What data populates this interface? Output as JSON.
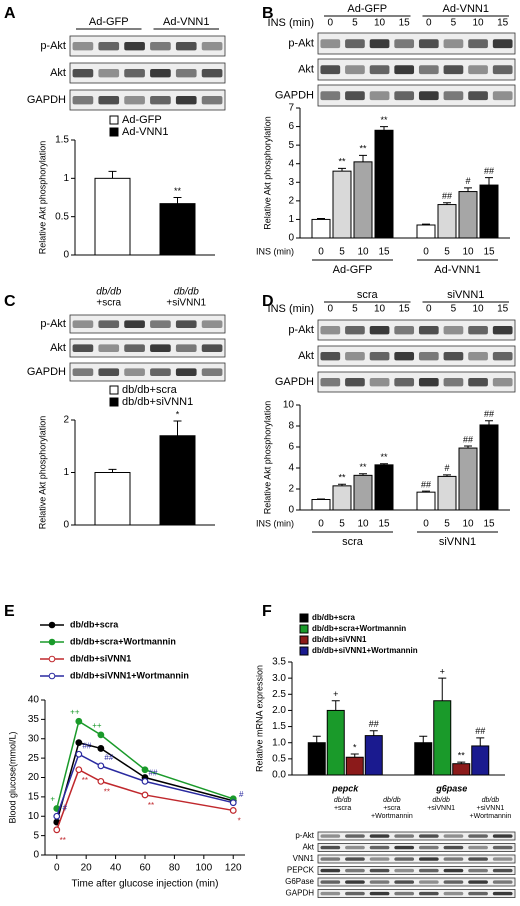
{
  "panel_labels": [
    "A",
    "B",
    "C",
    "D",
    "E",
    "F"
  ],
  "blots": [
    {
      "groups": [
        "Ad-GFP",
        "Ad-VNN1"
      ],
      "rows": [
        "p-Akt",
        "Akt",
        "GAPDH"
      ]
    },
    {
      "time_label": "INS (min)",
      "lanes": [
        "0",
        "5",
        "10",
        "15",
        "0",
        "5",
        "10",
        "15"
      ],
      "groups": [
        "Ad-GFP",
        "Ad-VNN1"
      ],
      "rows": [
        "p-Akt",
        "Akt",
        "GAPDH"
      ]
    },
    {
      "groups": [
        [
          "db/db",
          "+scra"
        ],
        [
          "db/db",
          "+siVNN1"
        ]
      ],
      "rows": [
        "p-Akt",
        "Akt",
        "GAPDH"
      ]
    },
    {
      "time_label": "INS (min)",
      "lanes": [
        "0",
        "5",
        "10",
        "15",
        "0",
        "5",
        "10",
        "15"
      ],
      "groups": [
        "scra",
        "siVNN1"
      ],
      "rows": [
        "p-Akt",
        "Akt",
        "GAPDH"
      ]
    },
    {
      "groups": [
        [
          "db/db",
          "+scra"
        ],
        [
          "db/db",
          "+scra",
          "+Wortmannin"
        ],
        [
          "db/db",
          "+siVNN1"
        ],
        [
          "db/db",
          "+siVNN1",
          "+Wortmannin"
        ]
      ],
      "rows": [
        "p-Akt",
        "Akt",
        "VNN1",
        "PEPCK",
        "G6Pase",
        "GAPDH"
      ]
    }
  ],
  "chart_data": [
    {
      "type": "bar",
      "ylabel": "Relative Akt phosphorylation",
      "ylim": [
        0,
        1.5
      ],
      "yticks": [
        0,
        0.5,
        1,
        1.5
      ],
      "series": [
        {
          "name": "Ad-GFP",
          "color": "#ffffff",
          "values": [
            1.0
          ],
          "errors": [
            0.09
          ],
          "sig": [
            null
          ]
        },
        {
          "name": "Ad-VNN1",
          "color": "#000000",
          "values": [
            0.67
          ],
          "errors": [
            0.08
          ],
          "sig": [
            "**"
          ]
        }
      ]
    },
    {
      "type": "bar",
      "ylabel": "Relative Akt phosphorylation",
      "xlabel": "INS (min)",
      "categories": [
        "0",
        "5",
        "10",
        "15"
      ],
      "colors": [
        "#ffffff",
        "#d9d9d9",
        "#a6a6a6",
        "#000000"
      ],
      "ylim": [
        0,
        7
      ],
      "yticks": [
        0,
        1,
        2,
        3,
        4,
        5,
        6,
        7
      ],
      "series": [
        {
          "name": "Ad-GFP",
          "values": [
            1.0,
            3.6,
            4.1,
            5.8
          ],
          "errors": [
            0.05,
            0.15,
            0.35,
            0.2
          ],
          "sig": [
            null,
            "**",
            "**",
            "**"
          ]
        },
        {
          "name": "Ad-VNN1",
          "values": [
            0.7,
            1.8,
            2.5,
            2.85
          ],
          "errors": [
            0.05,
            0.1,
            0.2,
            0.4
          ],
          "sig": [
            null,
            "##",
            "#",
            "##"
          ]
        }
      ]
    },
    {
      "type": "bar",
      "ylabel": "Relative Akt phosphorylation",
      "ylim": [
        0,
        2
      ],
      "yticks": [
        0,
        1,
        2
      ],
      "series": [
        {
          "name": "db/db+scra",
          "color": "#ffffff",
          "values": [
            1.0
          ],
          "errors": [
            0.06
          ],
          "sig": [
            null
          ]
        },
        {
          "name": "db/db+siVNN1",
          "color": "#000000",
          "values": [
            1.7
          ],
          "errors": [
            0.28
          ],
          "sig": [
            "*"
          ]
        }
      ]
    },
    {
      "type": "bar",
      "ylabel": "Relative Akt phosphorylation",
      "xlabel": "INS (min)",
      "categories": [
        "0",
        "5",
        "10",
        "15"
      ],
      "colors": [
        "#ffffff",
        "#d9d9d9",
        "#a6a6a6",
        "#000000"
      ],
      "ylim": [
        0,
        10
      ],
      "yticks": [
        0,
        2,
        4,
        6,
        8,
        10
      ],
      "series": [
        {
          "name": "scra",
          "values": [
            1.0,
            2.3,
            3.3,
            4.3
          ],
          "errors": [
            0.05,
            0.15,
            0.15,
            0.1
          ],
          "sig": [
            null,
            "**",
            "**",
            "**"
          ]
        },
        {
          "name": "siVNN1",
          "values": [
            1.7,
            3.2,
            5.9,
            8.1
          ],
          "errors": [
            0.1,
            0.15,
            0.2,
            0.4
          ],
          "sig": [
            "##",
            "#",
            "##",
            "##"
          ]
        }
      ]
    },
    {
      "type": "line",
      "xlabel": "Time after glucose injection (min)",
      "ylabel": "Blood glucose(mmol/L)",
      "x": [
        0,
        15,
        30,
        60,
        120
      ],
      "xlim": [
        -8,
        128
      ],
      "xticks": [
        0,
        20,
        40,
        60,
        80,
        100,
        120
      ],
      "ylim": [
        0,
        40
      ],
      "yticks": [
        0,
        5,
        10,
        15,
        20,
        25,
        30,
        35,
        40
      ],
      "series": [
        {
          "name": "db/db+scra",
          "color": "#000000",
          "marker": "filled",
          "values": [
            8.5,
            29,
            27.5,
            20,
            14
          ],
          "sig": [
            null,
            null,
            null,
            null,
            null
          ]
        },
        {
          "name": "db/db+scra+Wortmannin",
          "color": "#1a9a2a",
          "marker": "filled",
          "values": [
            12,
            34.5,
            31,
            22,
            14.5
          ],
          "sig": [
            "+",
            "++",
            "++",
            null,
            null
          ]
        },
        {
          "name": "db/db+siVNN1",
          "color": "#c0282d",
          "marker": "open",
          "values": [
            6.5,
            22,
            19,
            15.5,
            11.5
          ],
          "sig": [
            "**",
            "**",
            "**",
            "**",
            "*"
          ]
        },
        {
          "name": "db/db+siVNN1+Wortmannin",
          "color": "#2a2aa0",
          "marker": "open",
          "values": [
            10,
            26,
            23,
            19,
            13.5
          ],
          "sig": [
            "#",
            "##",
            "##",
            "##",
            "#"
          ]
        }
      ]
    },
    {
      "type": "bar",
      "ylabel": "Relative mRNA expression",
      "categories": [
        "pepck",
        "g6pase"
      ],
      "ylim": [
        0,
        3.5
      ],
      "yticks": [
        {
          "value": 0,
          "label": "0.0"
        },
        0.5,
        {
          "value": 1,
          "label": "1.0"
        },
        1.5,
        {
          "value": 2,
          "label": "2.0"
        },
        2.5,
        {
          "value": 3,
          "label": "3.0"
        },
        3.5
      ],
      "series": [
        {
          "name": "db/db+scra",
          "color": "#000000",
          "values": [
            1.0,
            1.0
          ],
          "errors": [
            0.2,
            0.2
          ],
          "sig": [
            null,
            null
          ]
        },
        {
          "name": "db/db+scra+Wortmannin",
          "color": "#1a9a2a",
          "values": [
            2.0,
            2.3
          ],
          "errors": [
            0.3,
            0.7
          ],
          "sig": [
            "+",
            "+"
          ]
        },
        {
          "name": "db/db+siVNN1",
          "color": "#8b1a1a",
          "values": [
            0.55,
            0.35
          ],
          "errors": [
            0.1,
            0.05
          ],
          "sig": [
            "*",
            "**"
          ]
        },
        {
          "name": "db/db+siVNN1+Wortmannin",
          "color": "#1a1a8f",
          "values": [
            1.22,
            0.9
          ],
          "errors": [
            0.15,
            0.25
          ],
          "sig": [
            "##",
            "##"
          ]
        }
      ]
    }
  ]
}
